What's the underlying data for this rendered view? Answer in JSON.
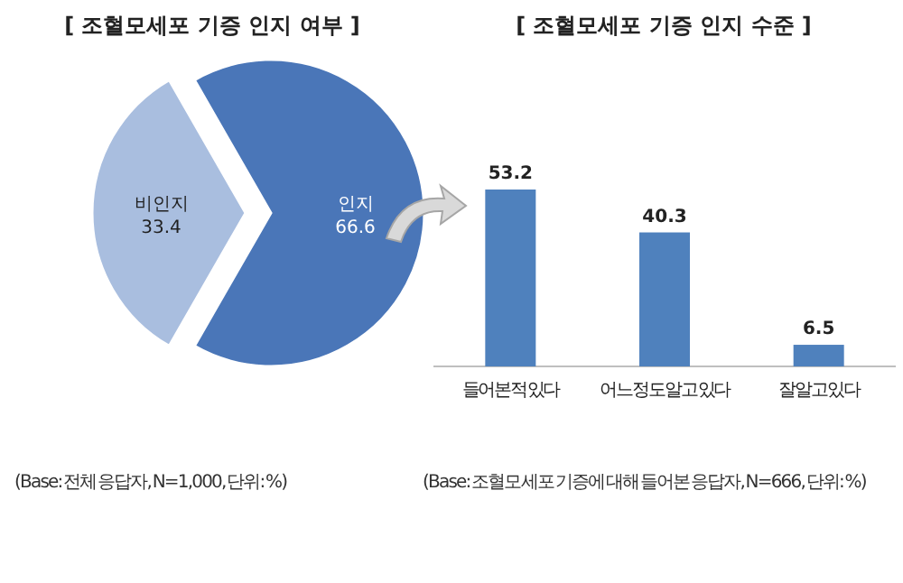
{
  "chart_data": [
    {
      "type": "pie",
      "title": "[ 조혈모세포 기증 인지 여부 ]",
      "categories": [
        "비인지",
        "인지"
      ],
      "values": [
        33.4,
        66.6
      ],
      "colors": [
        "#a9bedf",
        "#4a76b8"
      ],
      "data_labels": true,
      "annotations": [
        "(Base: 전체 응답자, N=1,000, 단위: %)"
      ]
    },
    {
      "type": "bar",
      "title": "[ 조혈모세포 기증 인지 수준 ]",
      "categories": [
        "들어본 적 있다",
        "어느 정도 알고 있다",
        "잘 알고 있다"
      ],
      "values": [
        53.2,
        40.3,
        6.5
      ],
      "color": "#4f81bd",
      "data_labels": true,
      "annotations": [
        "(Base: 조혈모세포 기증에 대해 들어본 응답자, N=666, 단위: %)"
      ]
    }
  ]
}
